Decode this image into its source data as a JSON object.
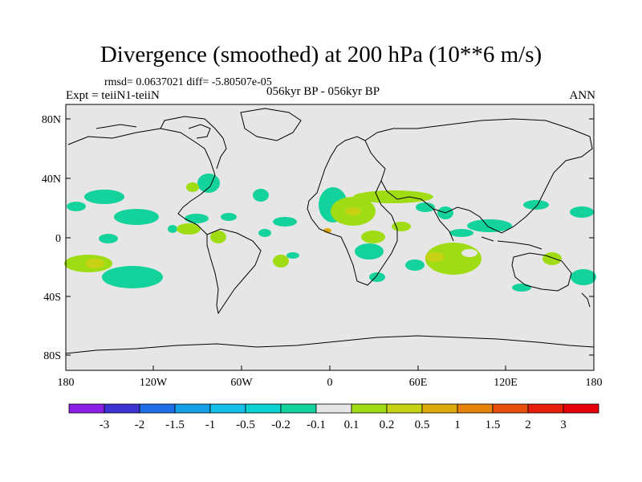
{
  "header": {
    "title": "Divergence (smoothed) at 200 hPa (10**6 m/s)",
    "stats": "rmsd= 0.0637021 diff= -5.80507e-05",
    "expt": "Expt = teiiN1-teiiN",
    "period": "056kyr BP - 056kyr BP",
    "season": "ANN"
  },
  "map": {
    "lat_labels": [
      "80N",
      "40N",
      "0",
      "40S",
      "80S"
    ],
    "lon_labels": [
      "180",
      "120W",
      "60W",
      "0",
      "60E",
      "120E",
      "180"
    ],
    "background_color": "#e6e6e6",
    "coastline_color": "#000000"
  },
  "colorbar": {
    "labels": [
      "-3",
      "-2",
      "-1.5",
      "-1",
      "-0.5",
      "-0.2",
      "-0.1",
      "0.1",
      "0.2",
      "0.5",
      "1",
      "1.5",
      "2",
      "3"
    ],
    "colors": [
      "#8a1ee6",
      "#3c32d2",
      "#1e6ee6",
      "#14a0e6",
      "#14bee6",
      "#0ad2d2",
      "#14d29c",
      "#e6e6e6",
      "#a0dc14",
      "#c8d214",
      "#dcaa0a",
      "#e6820a",
      "#e6500a",
      "#e61e0a",
      "#e6000a"
    ]
  }
}
